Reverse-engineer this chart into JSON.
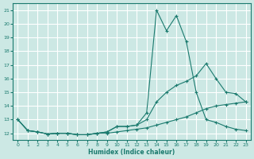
{
  "xlabel": "Humidex (Indice chaleur)",
  "xlim": [
    -0.5,
    23.5
  ],
  "ylim": [
    11.5,
    21.5
  ],
  "yticks": [
    12,
    13,
    14,
    15,
    16,
    17,
    18,
    19,
    20,
    21
  ],
  "xticks": [
    0,
    1,
    2,
    3,
    4,
    5,
    6,
    7,
    8,
    9,
    10,
    11,
    12,
    13,
    14,
    15,
    16,
    17,
    18,
    19,
    20,
    21,
    22,
    23
  ],
  "bg_color": "#cce8e4",
  "grid_color": "#ffffff",
  "line_color": "#1a7a6e",
  "line1_x": [
    0,
    1,
    2,
    3,
    4,
    5,
    6,
    7,
    8,
    9,
    10,
    11,
    12,
    13,
    14,
    15,
    16,
    17,
    18,
    19,
    20,
    21,
    22,
    23
  ],
  "line1_y": [
    13.0,
    12.2,
    12.1,
    11.95,
    12.0,
    12.0,
    11.9,
    11.9,
    12.0,
    12.0,
    12.1,
    12.2,
    12.3,
    12.4,
    12.6,
    12.8,
    13.0,
    13.2,
    13.5,
    13.8,
    14.0,
    14.1,
    14.2,
    14.3
  ],
  "line2_x": [
    0,
    1,
    2,
    3,
    4,
    5,
    6,
    7,
    8,
    9,
    10,
    11,
    12,
    13,
    14,
    15,
    16,
    17,
    18,
    19,
    20,
    21,
    22,
    23
  ],
  "line2_y": [
    13.0,
    12.2,
    12.1,
    11.95,
    12.0,
    12.0,
    11.9,
    11.9,
    12.0,
    12.1,
    12.5,
    12.5,
    12.6,
    13.0,
    14.3,
    15.0,
    15.5,
    15.8,
    16.2,
    17.1,
    16.0,
    15.0,
    14.9,
    14.3
  ],
  "line3_x": [
    0,
    1,
    2,
    3,
    4,
    5,
    6,
    7,
    8,
    9,
    10,
    11,
    12,
    13,
    14,
    15,
    16,
    17,
    18,
    19,
    20,
    21,
    22,
    23
  ],
  "line3_y": [
    13.0,
    12.2,
    12.1,
    11.95,
    12.0,
    12.0,
    11.9,
    11.9,
    12.0,
    12.1,
    12.5,
    12.5,
    12.6,
    13.5,
    21.0,
    19.5,
    20.6,
    18.7,
    15.0,
    13.0,
    12.8,
    12.5,
    12.3,
    12.2
  ]
}
